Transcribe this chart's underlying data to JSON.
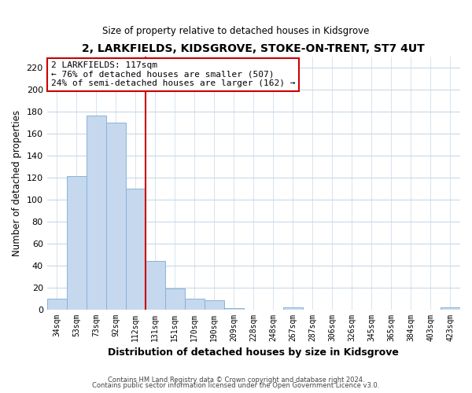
{
  "title_line1": "2, LARKFIELDS, KIDSGROVE, STOKE-ON-TRENT, ST7 4UT",
  "title_line2": "Size of property relative to detached houses in Kidsgrove",
  "bar_labels": [
    "34sqm",
    "53sqm",
    "73sqm",
    "92sqm",
    "112sqm",
    "131sqm",
    "151sqm",
    "170sqm",
    "190sqm",
    "209sqm",
    "228sqm",
    "248sqm",
    "267sqm",
    "287sqm",
    "306sqm",
    "326sqm",
    "345sqm",
    "365sqm",
    "384sqm",
    "403sqm",
    "423sqm"
  ],
  "bar_heights": [
    10,
    121,
    176,
    170,
    110,
    44,
    19,
    10,
    8,
    1,
    0,
    0,
    2,
    0,
    0,
    0,
    0,
    0,
    0,
    0,
    2
  ],
  "bar_color": "#c5d8ee",
  "bar_edge_color": "#8ab4d8",
  "ylabel": "Number of detached properties",
  "xlabel": "Distribution of detached houses by size in Kidsgrove",
  "ylim": [
    0,
    230
  ],
  "yticks": [
    0,
    20,
    40,
    60,
    80,
    100,
    120,
    140,
    160,
    180,
    200,
    220
  ],
  "vline_x_index": 4.5,
  "vline_color": "#cc0000",
  "annotation_title": "2 LARKFIELDS: 117sqm",
  "annotation_line1": "← 76% of detached houses are smaller (507)",
  "annotation_line2": "24% of semi-detached houses are larger (162) →",
  "annotation_box_color": "#ffffff",
  "annotation_box_edge": "#cc0000",
  "footer_line1": "Contains HM Land Registry data © Crown copyright and database right 2024.",
  "footer_line2": "Contains public sector information licensed under the Open Government Licence v3.0.",
  "grid_color": "#c8d8e8",
  "background_color": "#ffffff",
  "plot_bg_color": "#ffffff"
}
